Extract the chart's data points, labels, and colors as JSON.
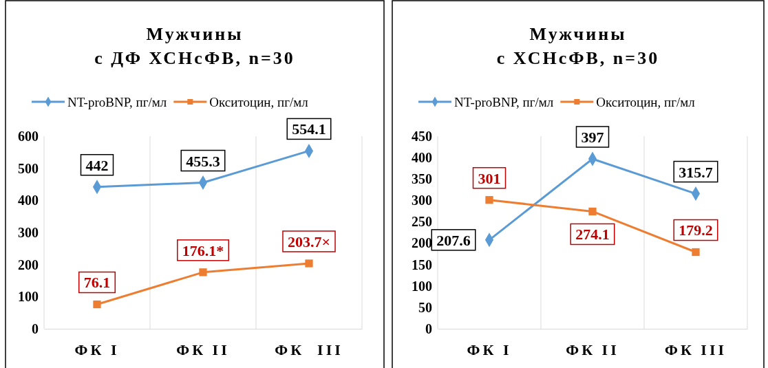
{
  "chart_data": [
    {
      "type": "line",
      "title": "Мужчины\nс ДФ ХСНсФВ, n=30",
      "categories": [
        "ФК I",
        "ФК II",
        "ФК  III"
      ],
      "ylim": [
        0,
        600
      ],
      "yticks": [
        0,
        100,
        200,
        300,
        400,
        500,
        600
      ],
      "grid": "x",
      "legend": "top",
      "line_style": "solid",
      "series": [
        {
          "name": "NT-proBNP, пг/мл",
          "color": "#5b9bd5",
          "marker": "diamond",
          "values": [
            442,
            455.3,
            554.1
          ],
          "value_labels": [
            "442",
            "455.3",
            "554.1"
          ]
        },
        {
          "name": "Окситоцин, пг/мл",
          "color": "#ed7d31",
          "marker": "square",
          "values": [
            76.1,
            176.1,
            203.7
          ],
          "value_labels": [
            "76.1",
            "176.1*",
            "203.7×"
          ]
        }
      ]
    },
    {
      "type": "line",
      "title": "Мужчины\nс ХСНсФВ, n=30",
      "categories": [
        "ФК I",
        "ФК II",
        "ФК III"
      ],
      "ylim": [
        0,
        450
      ],
      "yticks": [
        0,
        50,
        100,
        150,
        200,
        250,
        300,
        350,
        400,
        450
      ],
      "grid": "x",
      "legend": "top",
      "line_style": "solid",
      "series": [
        {
          "name": "NT-proBNP, пг/мл",
          "color": "#5b9bd5",
          "marker": "diamond",
          "values": [
            207.6,
            397,
            315.7
          ],
          "value_labels": [
            "207.6",
            "397",
            "315.7"
          ]
        },
        {
          "name": "Окситоцин, пг/мл",
          "color": "#ed7d31",
          "marker": "square",
          "values": [
            301,
            274.1,
            179.2
          ],
          "value_labels": [
            "301",
            "274.1",
            "179.2"
          ]
        }
      ]
    }
  ]
}
